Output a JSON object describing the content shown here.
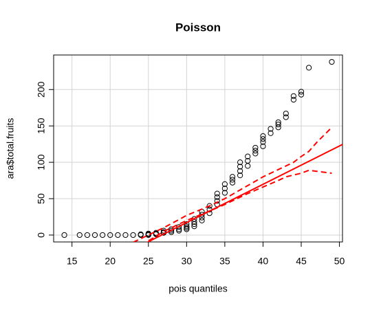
{
  "chart_data": {
    "type": "scatter",
    "title": "Poisson",
    "xlabel": "pois quantiles",
    "ylabel": "ara$total.fruits",
    "xlim": [
      12.6,
      50.4
    ],
    "ylim": [
      -9.5,
      247.5
    ],
    "xticks": [
      15,
      20,
      25,
      30,
      35,
      40,
      45,
      50
    ],
    "yticks": [
      0,
      50,
      100,
      150,
      200
    ],
    "grid": true,
    "point_color": "#000000",
    "points": {
      "x": [
        14,
        16,
        17,
        18,
        19,
        20,
        21,
        22,
        23,
        24,
        24,
        25,
        25,
        25,
        26,
        26,
        26,
        27,
        27,
        27,
        28,
        28,
        28,
        29,
        29,
        29,
        30,
        30,
        30,
        30,
        31,
        31,
        31,
        31,
        32,
        32,
        32,
        32,
        33,
        33,
        33,
        34,
        34,
        34,
        34,
        35,
        35,
        35,
        36,
        36,
        36,
        37,
        37,
        37,
        37,
        38,
        38,
        38,
        39,
        39,
        39,
        40,
        40,
        40,
        40,
        41,
        41,
        42,
        42,
        42,
        43,
        43,
        44,
        44,
        45,
        45,
        46,
        49
      ],
      "y": [
        0,
        0,
        0,
        0,
        0,
        0,
        0,
        0,
        0,
        0,
        1,
        0,
        1,
        2,
        1,
        2,
        3,
        3,
        4,
        6,
        4,
        6,
        8,
        6,
        8,
        11,
        8,
        10,
        12,
        15,
        12,
        15,
        18,
        22,
        20,
        24,
        28,
        32,
        30,
        35,
        40,
        42,
        47,
        52,
        57,
        58,
        64,
        70,
        72,
        76,
        80,
        82,
        88,
        94,
        100,
        95,
        102,
        108,
        112,
        116,
        120,
        122,
        128,
        132,
        136,
        140,
        146,
        148,
        152,
        155,
        162,
        167,
        186,
        191,
        193,
        197,
        230,
        238
      ]
    },
    "fit": {
      "color": "#ff0000",
      "x": [
        22,
        50.4
      ],
      "y": [
        -25,
        124.5
      ]
    },
    "envelope": [
      {
        "color": "#ff0000",
        "x": [
          23,
          25,
          27,
          30,
          33,
          35,
          38,
          40,
          42,
          44,
          45,
          46,
          47,
          49
        ],
        "y": [
          -10,
          0,
          10,
          27,
          40,
          50,
          68,
          80,
          90,
          100,
          108,
          115,
          127,
          148
        ]
      },
      {
        "color": "#ff0000",
        "x": [
          23,
          25,
          27,
          30,
          33,
          35,
          38,
          40,
          42,
          43,
          45,
          46,
          49
        ],
        "y": [
          -20,
          -8,
          5,
          20,
          33,
          42,
          57,
          66,
          75,
          80,
          85,
          89,
          85
        ]
      }
    ]
  }
}
